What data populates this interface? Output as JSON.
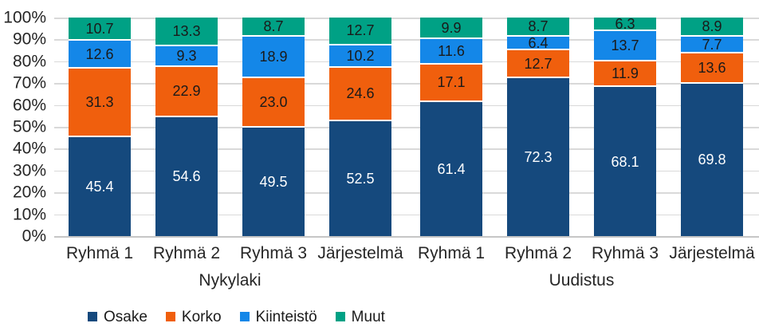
{
  "chart_data": {
    "type": "bar",
    "variant": "stacked-100",
    "title": "",
    "grid": true,
    "gridline_color": "#D9D9D9",
    "axis_line_color": "#C6C6C6",
    "legend_position": "bottom",
    "y_axis": {
      "min": 0,
      "max": 100,
      "step": 10,
      "ticks": [
        "0%",
        "10%",
        "20%",
        "30%",
        "40%",
        "50%",
        "60%",
        "70%",
        "80%",
        "90%",
        "100%"
      ]
    },
    "groups": [
      {
        "label": "Nykylaki",
        "categories": [
          "Ryhmä 1",
          "Ryhmä 2",
          "Ryhmä 3",
          "Järjestelmä"
        ]
      },
      {
        "label": "Uudistus",
        "categories": [
          "Ryhmä 1",
          "Ryhmä 2",
          "Ryhmä 3",
          "Järjestelmä"
        ]
      }
    ],
    "series": [
      {
        "name": "Osake",
        "color": "#15497D",
        "label_color": "#FFFFFF",
        "values": [
          [
            45.4,
            54.6,
            49.5,
            52.5
          ],
          [
            61.4,
            72.3,
            68.1,
            69.8
          ]
        ]
      },
      {
        "name": "Korko",
        "color": "#F05F0D",
        "label_color": "#1A1A1A",
        "values": [
          [
            31.3,
            22.9,
            23.0,
            24.6
          ],
          [
            17.1,
            12.7,
            11.9,
            13.6
          ]
        ]
      },
      {
        "name": "Kiinteistö",
        "color": "#1487E8",
        "label_color": "#1A1A1A",
        "values": [
          [
            12.6,
            9.3,
            18.9,
            10.2
          ],
          [
            11.6,
            6.4,
            13.7,
            7.7
          ]
        ]
      },
      {
        "name": "Muut",
        "color": "#00A185",
        "label_color": "#1A1A1A",
        "values": [
          [
            10.7,
            13.3,
            8.7,
            12.7
          ],
          [
            9.9,
            8.7,
            6.3,
            8.9
          ]
        ]
      }
    ]
  }
}
